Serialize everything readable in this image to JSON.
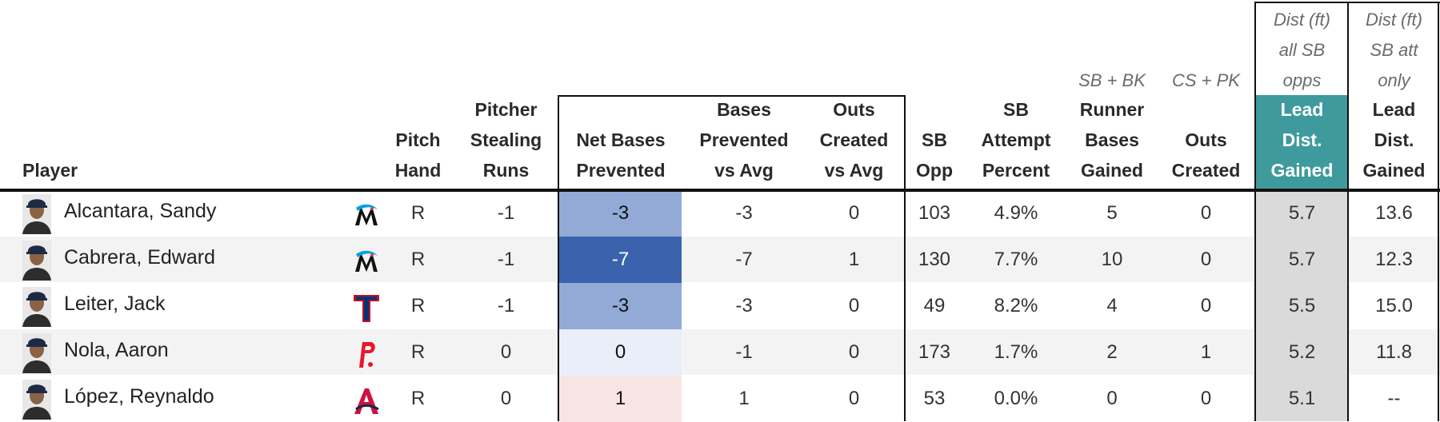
{
  "table": {
    "headers": {
      "player": "Player",
      "pitch_hand": [
        "Pitch",
        "Hand"
      ],
      "stealing_runs": [
        "Pitcher",
        "Stealing",
        "Runs"
      ],
      "net_bases": [
        "Net Bases",
        "Prevented"
      ],
      "bases_prevented": [
        "Bases",
        "Prevented",
        "vs Avg"
      ],
      "outs_created_avg": [
        "Outs",
        "Created",
        "vs Avg"
      ],
      "sb_opp": [
        "SB",
        "Opp"
      ],
      "sb_attempt": [
        "SB",
        "Attempt",
        "Percent"
      ],
      "runner_bases": [
        "Runner",
        "Bases",
        "Gained"
      ],
      "outs_created": [
        "Outs",
        "Created"
      ],
      "lead_all": [
        "Lead",
        "Dist.",
        "Gained"
      ],
      "lead_att": [
        "Lead",
        "Dist.",
        "Gained"
      ]
    },
    "super_headers": {
      "runner_bases": "SB + BK",
      "outs_created": "CS + PK",
      "lead_all": [
        "Dist (ft)",
        "all SB",
        "opps"
      ],
      "lead_att": [
        "Dist (ft)",
        "SB att",
        "only"
      ]
    },
    "rows": [
      {
        "player": "Alcantara, Sandy",
        "team_icon": "marlins-logo-icon",
        "hand": "R",
        "stealing_runs": "-1",
        "net_bases": "-3",
        "net_color": "#93aad6",
        "bases_prevented": "-3",
        "outs_created_avg": "0",
        "sb_opp": "103",
        "sb_attempt": "4.9%",
        "runner_bases": "5",
        "outs_created": "0",
        "lead_all": "5.7",
        "lead_att": "13.6"
      },
      {
        "player": "Cabrera, Edward",
        "team_icon": "marlins-logo-icon",
        "hand": "R",
        "stealing_runs": "-1",
        "net_bases": "-7",
        "net_color": "#3a62ad",
        "bases_prevented": "-7",
        "outs_created_avg": "1",
        "sb_opp": "130",
        "sb_attempt": "7.7%",
        "runner_bases": "10",
        "outs_created": "0",
        "lead_all": "5.7",
        "lead_att": "12.3"
      },
      {
        "player": "Leiter, Jack",
        "team_icon": "rangers-logo-icon",
        "hand": "R",
        "stealing_runs": "-1",
        "net_bases": "-3",
        "net_color": "#93aad6",
        "bases_prevented": "-3",
        "outs_created_avg": "0",
        "sb_opp": "49",
        "sb_attempt": "8.2%",
        "runner_bases": "4",
        "outs_created": "0",
        "lead_all": "5.5",
        "lead_att": "15.0"
      },
      {
        "player": "Nola, Aaron",
        "team_icon": "phillies-logo-icon",
        "hand": "R",
        "stealing_runs": "0",
        "net_bases": "0",
        "net_color": "#e9eef8",
        "bases_prevented": "-1",
        "outs_created_avg": "0",
        "sb_opp": "173",
        "sb_attempt": "1.7%",
        "runner_bases": "2",
        "outs_created": "1",
        "lead_all": "5.2",
        "lead_att": "11.8"
      },
      {
        "player": "López, Reynaldo",
        "team_icon": "braves-logo-icon",
        "hand": "R",
        "stealing_runs": "0",
        "net_bases": "1",
        "net_color": "#f9e4e4",
        "bases_prevented": "1",
        "outs_created_avg": "0",
        "sb_opp": "53",
        "sb_attempt": "0.0%",
        "runner_bases": "0",
        "outs_created": "0",
        "lead_all": "5.1",
        "lead_att": "--"
      }
    ],
    "colors": {
      "lead_header": "#3e9a9d",
      "lead_column": "#dadada",
      "row_alt": "#f3f3f3"
    }
  }
}
